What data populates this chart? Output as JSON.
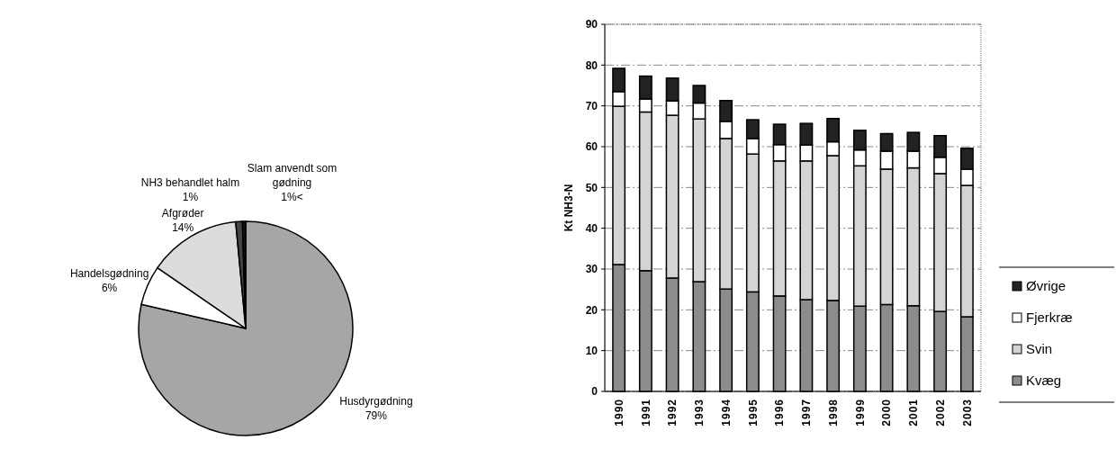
{
  "chart_data": [
    {
      "type": "pie",
      "categories": [
        "Husdyrgødning",
        "Handelsgødning",
        "Afgrøder",
        "NH3 behandlet halm",
        "Slam anvendt som gødning"
      ],
      "values": [
        79,
        6,
        14,
        1,
        0.5
      ],
      "value_labels": [
        "79%",
        "6%",
        "14%",
        "1%",
        "1%<"
      ],
      "colors": [
        "#a6a6a6",
        "#ffffff",
        "#dcdcdc",
        "#444444",
        "#111111"
      ]
    },
    {
      "type": "bar",
      "stacked": true,
      "ylabel": "Kt NH3-N",
      "categories": [
        "1990",
        "1991",
        "1992",
        "1993",
        "1994",
        "1995",
        "1996",
        "1997",
        "1998",
        "1999",
        "2000",
        "2001",
        "2002",
        "2003"
      ],
      "ylim": [
        0,
        90
      ],
      "yticks": [
        0,
        10,
        20,
        30,
        40,
        50,
        60,
        70,
        80,
        90
      ],
      "grid": "y",
      "legend": "right",
      "series": [
        {
          "name": "Kvæg",
          "color": "#8c8c8c",
          "values": [
            31.1,
            29.6,
            27.8,
            26.9,
            25.1,
            24.4,
            23.4,
            22.5,
            22.3,
            20.9,
            21.3,
            21.0,
            19.6,
            18.3
          ]
        },
        {
          "name": "Svin",
          "color": "#d4d4d4",
          "values": [
            38.8,
            38.9,
            39.9,
            39.9,
            36.9,
            33.8,
            33.1,
            34.0,
            35.5,
            34.4,
            33.2,
            33.8,
            33.8,
            32.2
          ]
        },
        {
          "name": "Fjerkræ",
          "color": "#ffffff",
          "values": [
            3.6,
            3.2,
            3.5,
            3.9,
            4.2,
            3.8,
            4.0,
            3.9,
            3.4,
            3.9,
            4.4,
            4.1,
            4.0,
            4.0
          ]
        },
        {
          "name": "Øvrige",
          "color": "#222222",
          "values": [
            5.7,
            5.6,
            5.6,
            4.3,
            5.1,
            4.6,
            5.0,
            5.3,
            5.7,
            4.8,
            4.3,
            4.6,
            5.3,
            5.1
          ]
        }
      ]
    }
  ]
}
